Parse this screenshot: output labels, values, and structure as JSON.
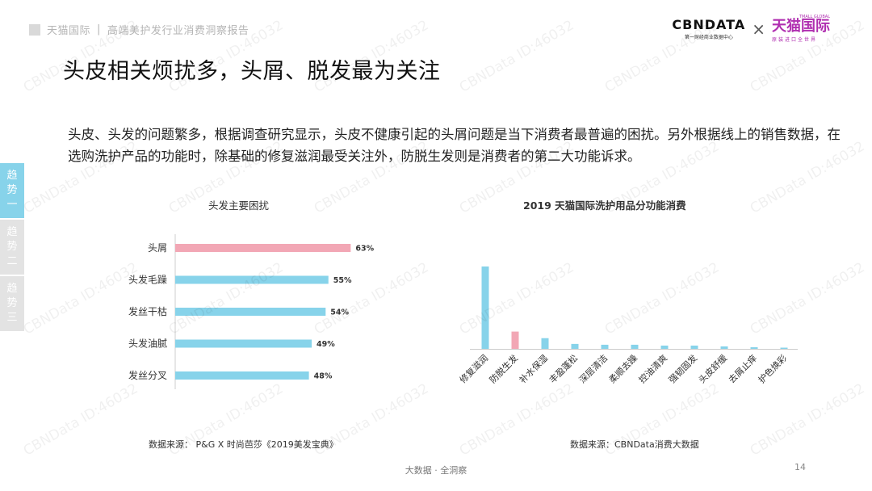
{
  "header": {
    "brand": "天猫国际",
    "report_title": "高端美护发行业消费洞察报告",
    "cbn_logo": "CBNDATA",
    "cbn_sub": "第一财经商业数据中心",
    "times": "×",
    "tmall_small": "TMALL GLOBAL",
    "tmall_logo": "天猫国际",
    "tmall_sub": "原装进口全世界"
  },
  "page_title": "头皮相关烦扰多，头屑、脱发最为关注",
  "intro": "头皮、头发的问题繁多，根据调查研究显示，头皮不健康引起的头屑问题是当下消费者最普遍的困扰。另外根据线上的销售数据，在选购洗护产品的功能时，除基础的修复滋润最受关注外，防脱生发则是消费者的第二大功能诉求。",
  "side_tabs": [
    {
      "label": "趋势一",
      "chars": [
        "趋",
        "势",
        "一"
      ],
      "active": true
    },
    {
      "label": "趋势二",
      "chars": [
        "趋",
        "势",
        "二"
      ],
      "active": false
    },
    {
      "label": "趋势三",
      "chars": [
        "趋",
        "势",
        "三"
      ],
      "active": false
    }
  ],
  "colors": {
    "accent_blue": "#87d3ea",
    "accent_pink": "#f2a7b5",
    "tab_inactive": "#e3e3e3",
    "tmall_purple": "#b02fb0"
  },
  "left_source": "数据来源： P&G X 时尚芭莎《2019美发宝典》",
  "right_source": "数据来源：CBNData消费大数据",
  "footer": "大数据 · 全洞察",
  "page_number": "14",
  "watermark": "CBNData ID:46032",
  "chart_data": [
    {
      "type": "bar",
      "orientation": "horizontal",
      "title": "头发主要困扰",
      "categories": [
        "头屑",
        "头发毛躁",
        "发丝干枯",
        "头发油腻",
        "发丝分叉"
      ],
      "values": [
        63,
        55,
        54,
        49,
        48
      ],
      "value_labels": [
        "63%",
        "55%",
        "54%",
        "49%",
        "48%"
      ],
      "unit": "%",
      "highlight_index": 0,
      "grid": false,
      "legend": "none",
      "xlim": [
        0,
        100
      ]
    },
    {
      "type": "bar",
      "orientation": "vertical",
      "title": "2019 天猫国际洗护用品分功能消费",
      "categories": [
        "修复滋润",
        "防脱生发",
        "补水保湿",
        "丰盈蓬松",
        "深层清洁",
        "柔顺去躁",
        "控油清爽",
        "强韧固发",
        "头皮舒缓",
        "去屑止痒",
        "护色焕彩"
      ],
      "values": [
        100,
        21,
        13,
        6,
        5,
        5,
        4,
        4,
        3,
        2,
        1
      ],
      "highlight_index": 1,
      "grid": false,
      "legend": "none",
      "ylim": [
        0,
        100
      ]
    }
  ]
}
